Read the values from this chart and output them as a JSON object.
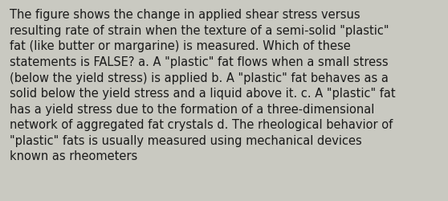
{
  "lines": [
    "The figure shows the change in applied shear stress versus",
    "resulting rate of strain when the texture of a semi-solid \"plastic\"",
    "fat (like butter or margarine) is measured. Which of these",
    "statements is FALSE? a. A \"plastic\" fat flows when a small stress",
    "(below the yield stress) is applied b. A \"plastic\" fat behaves as a",
    "solid below the yield stress and a liquid above it. c. A \"plastic\" fat",
    "has a yield stress due to the formation of a three-dimensional",
    "network of aggregated fat crystals d. The rheological behavior of",
    "\"plastic\" fats is usually measured using mechanical devices",
    "known as rheometers"
  ],
  "background_color": "#c9c9c1",
  "text_color": "#1a1a1a",
  "font_size": 10.5,
  "fig_width": 5.58,
  "fig_height": 2.51
}
